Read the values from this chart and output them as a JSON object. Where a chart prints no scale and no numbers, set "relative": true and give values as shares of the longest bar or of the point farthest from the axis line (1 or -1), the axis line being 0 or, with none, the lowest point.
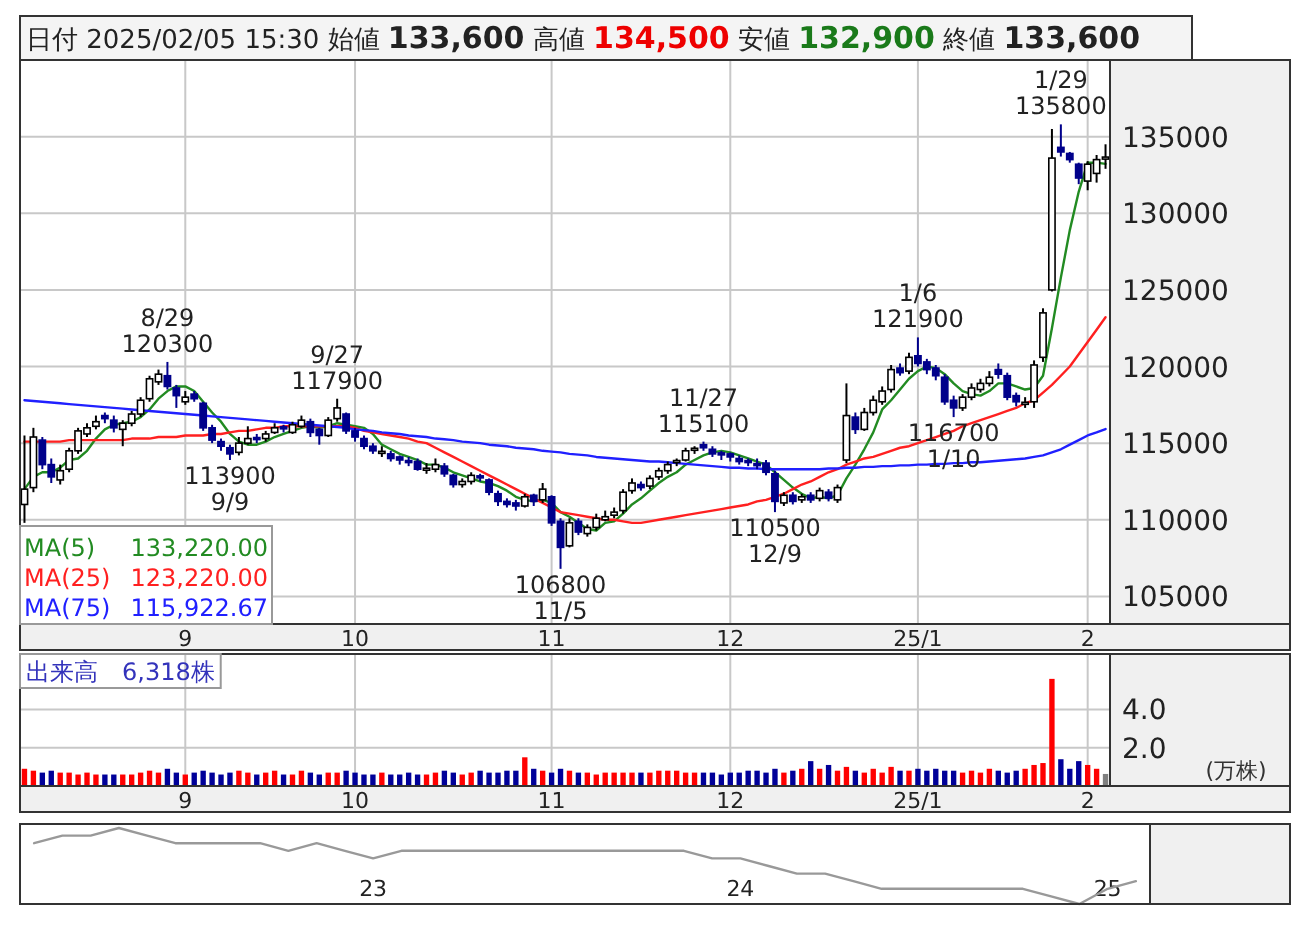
{
  "chart_data": [
    {
      "type": "candlestick",
      "title": "日付 2025/02/05 15:30 始値 **133,600** 高値 **134,500** 安値 **132,900** 終値 **133,600**",
      "categories": [
        null,
        null,
        null,
        null,
        null,
        null,
        null,
        null,
        null,
        null,
        null,
        null,
        null,
        null,
        null,
        null,
        null,
        null,
        "9",
        null,
        null,
        null,
        null,
        null,
        null,
        null,
        null,
        null,
        null,
        null,
        null,
        null,
        null,
        null,
        null,
        null,
        null,
        "10",
        null,
        null,
        null,
        null,
        null,
        null,
        null,
        null,
        null,
        null,
        null,
        null,
        null,
        null,
        null,
        null,
        null,
        null,
        null,
        null,
        null,
        "11",
        null,
        null,
        null,
        null,
        null,
        null,
        null,
        null,
        null,
        null,
        null,
        null,
        null,
        null,
        null,
        null,
        null,
        null,
        null,
        "12",
        null,
        null,
        null,
        null,
        null,
        null,
        null,
        null,
        null,
        null,
        null,
        null,
        null,
        null,
        null,
        null,
        null,
        null,
        null,
        null,
        "25/1",
        null,
        null,
        null,
        null,
        null,
        null,
        null,
        null,
        null,
        null,
        null,
        null,
        null,
        null,
        null,
        null,
        null,
        null,
        "2",
        null,
        null
      ],
      "ohlc": [
        [
          111000,
          115500,
          109800,
          112000
        ],
        [
          112100,
          116000,
          111800,
          115400
        ],
        [
          115200,
          115400,
          113300,
          113600
        ],
        [
          113600,
          114000,
          112400,
          112800
        ],
        [
          112600,
          113600,
          112300,
          113200
        ],
        [
          113300,
          114700,
          113100,
          114500
        ],
        [
          114500,
          116000,
          114300,
          115800
        ],
        [
          115600,
          116300,
          115400,
          116000
        ],
        [
          116100,
          116800,
          115900,
          116400
        ],
        [
          116800,
          117000,
          116300,
          116600
        ],
        [
          116500,
          116800,
          115700,
          116000
        ],
        [
          115900,
          116500,
          114800,
          116300
        ],
        [
          116300,
          117100,
          116100,
          116900
        ],
        [
          116900,
          118000,
          116700,
          117800
        ],
        [
          117900,
          119400,
          117700,
          119200
        ],
        [
          119000,
          119800,
          118800,
          119500
        ],
        [
          119400,
          120300,
          118500,
          118700
        ],
        [
          118600,
          118800,
          117300,
          118100
        ],
        [
          117700,
          118400,
          117500,
          118000
        ],
        [
          118200,
          118400,
          117700,
          117900
        ],
        [
          117600,
          117700,
          115800,
          116000
        ],
        [
          116000,
          116200,
          115000,
          115200
        ],
        [
          115100,
          115300,
          114500,
          114800
        ],
        [
          114700,
          114900,
          113900,
          114300
        ],
        [
          114400,
          115400,
          114200,
          115000
        ],
        [
          115000,
          116100,
          114900,
          115300
        ],
        [
          115300,
          115600,
          115000,
          115200
        ],
        [
          115300,
          115800,
          115100,
          115600
        ],
        [
          115700,
          116300,
          115600,
          116000
        ],
        [
          116000,
          116200,
          115700,
          115900
        ],
        [
          115700,
          116400,
          115600,
          116200
        ],
        [
          116100,
          116800,
          116000,
          116500
        ],
        [
          116400,
          116600,
          115400,
          115700
        ],
        [
          115900,
          116000,
          114900,
          115500
        ],
        [
          115500,
          116700,
          115400,
          116500
        ],
        [
          116600,
          117900,
          116400,
          117300
        ],
        [
          116900,
          117000,
          115600,
          115800
        ],
        [
          115800,
          116000,
          115100,
          115400
        ],
        [
          115300,
          115500,
          114600,
          114800
        ],
        [
          114800,
          115000,
          114300,
          114500
        ],
        [
          114300,
          114800,
          114100,
          114400
        ],
        [
          114300,
          114500,
          113800,
          114000
        ],
        [
          114100,
          114200,
          113600,
          113900
        ],
        [
          113800,
          114100,
          113500,
          113700
        ],
        [
          113800,
          114000,
          113200,
          113300
        ],
        [
          113200,
          113700,
          113000,
          113300
        ],
        [
          113300,
          114000,
          113100,
          113600
        ],
        [
          113500,
          113700,
          112800,
          113000
        ],
        [
          112900,
          113000,
          112100,
          112300
        ],
        [
          112300,
          112700,
          112100,
          112500
        ],
        [
          112500,
          113100,
          112300,
          112900
        ],
        [
          112800,
          113000,
          112500,
          112700
        ],
        [
          112600,
          112700,
          111600,
          111800
        ],
        [
          111700,
          111900,
          110900,
          111200
        ],
        [
          111200,
          111400,
          110800,
          111000
        ],
        [
          111100,
          111300,
          110600,
          110900
        ],
        [
          110900,
          111700,
          110800,
          111500
        ],
        [
          111600,
          111700,
          110900,
          111200
        ],
        [
          111300,
          112400,
          111100,
          112000
        ],
        [
          111500,
          111600,
          109600,
          109800
        ],
        [
          109900,
          110100,
          106800,
          108200
        ],
        [
          108300,
          110100,
          108200,
          109800
        ],
        [
          109900,
          110100,
          109000,
          109200
        ],
        [
          109100,
          109700,
          108900,
          109500
        ],
        [
          109500,
          110400,
          109300,
          110100
        ],
        [
          110000,
          110600,
          109900,
          110200
        ],
        [
          110300,
          110800,
          110100,
          110500
        ],
        [
          110600,
          112000,
          110400,
          111800
        ],
        [
          111900,
          112700,
          111700,
          112400
        ],
        [
          112300,
          112500,
          111900,
          112100
        ],
        [
          112200,
          112900,
          112000,
          112700
        ],
        [
          112800,
          113400,
          112600,
          113200
        ],
        [
          113200,
          113800,
          113000,
          113600
        ],
        [
          113700,
          114000,
          113500,
          113800
        ],
        [
          113900,
          114700,
          113800,
          114500
        ],
        [
          114500,
          114800,
          114300,
          114600
        ],
        [
          114900,
          115100,
          114500,
          114700
        ],
        [
          114600,
          114800,
          114100,
          114300
        ],
        [
          114300,
          114500,
          113900,
          114200
        ],
        [
          114300,
          114400,
          113800,
          114100
        ],
        [
          114000,
          114200,
          113600,
          113800
        ],
        [
          113800,
          114000,
          113500,
          113700
        ],
        [
          113600,
          114000,
          113300,
          113500
        ],
        [
          113700,
          113900,
          112900,
          113100
        ],
        [
          113000,
          113200,
          110500,
          111200
        ],
        [
          111100,
          111800,
          110900,
          111600
        ],
        [
          111600,
          111800,
          111000,
          111200
        ],
        [
          111300,
          111700,
          111100,
          111500
        ],
        [
          111600,
          111800,
          111100,
          111300
        ],
        [
          111400,
          112100,
          111200,
          111900
        ],
        [
          111800,
          112000,
          111200,
          111400
        ],
        [
          111300,
          112300,
          111100,
          112100
        ],
        [
          113900,
          118900,
          113700,
          116800
        ],
        [
          116700,
          117000,
          115600,
          115900
        ],
        [
          115900,
          117300,
          115800,
          117000
        ],
        [
          117000,
          118100,
          116800,
          117800
        ],
        [
          117700,
          118700,
          117500,
          118400
        ],
        [
          118500,
          120100,
          118300,
          119800
        ],
        [
          119900,
          120200,
          119400,
          119600
        ],
        [
          119700,
          120900,
          119500,
          120600
        ],
        [
          120700,
          121900,
          120000,
          120200
        ],
        [
          120300,
          120500,
          119500,
          119800
        ],
        [
          119900,
          120100,
          119100,
          119400
        ],
        [
          119300,
          119500,
          117500,
          117700
        ],
        [
          117800,
          118100,
          116700,
          117300
        ],
        [
          117300,
          118200,
          117100,
          118000
        ],
        [
          118000,
          118900,
          117800,
          118600
        ],
        [
          118500,
          119200,
          118300,
          118900
        ],
        [
          118900,
          119700,
          118700,
          119300
        ],
        [
          119800,
          120200,
          119200,
          119500
        ],
        [
          119400,
          119600,
          117800,
          118000
        ],
        [
          118100,
          118300,
          117400,
          117700
        ],
        [
          117500,
          118000,
          117300,
          117600
        ],
        [
          117700,
          120400,
          117300,
          120100
        ],
        [
          120600,
          123800,
          120300,
          123500
        ],
        [
          125000,
          135500,
          124900,
          133600
        ],
        [
          134300,
          135800,
          133700,
          134000
        ],
        [
          133900,
          134000,
          133300,
          133500
        ],
        [
          133200,
          133300,
          131900,
          132300
        ],
        [
          132100,
          133400,
          131500,
          133200
        ],
        [
          132600,
          133800,
          132000,
          133500
        ],
        [
          133600,
          134500,
          132900,
          133600
        ]
      ],
      "colors": [
        "#ffffff",
        "#ffffff",
        "#00008b",
        "#00008b",
        "#ffffff",
        "#ffffff",
        "#ffffff",
        "#ffffff",
        "#ffffff",
        "#00008b",
        "#00008b",
        "#ffffff",
        "#ffffff",
        "#ffffff",
        "#ffffff",
        "#ffffff",
        "#00008b",
        "#00008b",
        "#ffffff",
        "#00008b",
        "#00008b",
        "#00008b",
        "#00008b",
        "#00008b",
        "#ffffff",
        "#ffffff",
        "#00008b",
        "#ffffff",
        "#ffffff",
        "#00008b",
        "#ffffff",
        "#ffffff",
        "#00008b",
        "#00008b",
        "#ffffff",
        "#ffffff",
        "#00008b",
        "#00008b",
        "#00008b",
        "#00008b",
        "#ffffff",
        "#00008b",
        "#00008b",
        "#00008b",
        "#00008b",
        "#ffffff",
        "#ffffff",
        "#00008b",
        "#00008b",
        "#ffffff",
        "#ffffff",
        "#00008b",
        "#00008b",
        "#00008b",
        "#00008b",
        "#00008b",
        "#ffffff",
        "#00008b",
        "#ffffff",
        "#00008b",
        "#00008b",
        "#ffffff",
        "#00008b",
        "#ffffff",
        "#ffffff",
        "#ffffff",
        "#ffffff",
        "#ffffff",
        "#ffffff",
        "#00008b",
        "#ffffff",
        "#ffffff",
        "#ffffff",
        "#ffffff",
        "#ffffff",
        "#ffffff",
        "#00008b",
        "#00008b",
        "#00008b",
        "#00008b",
        "#00008b",
        "#00008b",
        "#00008b",
        "#00008b",
        "#00008b",
        "#ffffff",
        "#00008b",
        "#ffffff",
        "#00008b",
        "#ffffff",
        "#00008b",
        "#ffffff",
        "#ffffff",
        "#00008b",
        "#ffffff",
        "#ffffff",
        "#ffffff",
        "#ffffff",
        "#00008b",
        "#ffffff",
        "#00008b",
        "#00008b",
        "#00008b",
        "#00008b",
        "#00008b",
        "#ffffff",
        "#ffffff",
        "#ffffff",
        "#ffffff",
        "#00008b",
        "#00008b",
        "#00008b",
        "#ffffff",
        "#ffffff",
        "#ffffff",
        "#ffffff",
        "#00008b",
        "#00008b",
        "#00008b",
        "#ffffff",
        "#ffffff",
        "#ffffff"
      ],
      "series": [
        {
          "type": "line",
          "name": "MA(5) 133,220.00",
          "color": "#228b22",
          "values": [
            112000,
            112800,
            113100,
            113100,
            113400,
            113900,
            114000,
            114500,
            115300,
            115900,
            116200,
            116300,
            116400,
            116700,
            117200,
            117900,
            118400,
            118700,
            118700,
            118400,
            117700,
            117000,
            116400,
            115600,
            115100,
            114900,
            114900,
            115100,
            115400,
            115600,
            115800,
            116000,
            116100,
            116000,
            116100,
            116300,
            116200,
            116100,
            116000,
            115600,
            114900,
            114600,
            114300,
            114100,
            113900,
            113600,
            113600,
            113400,
            113100,
            112900,
            112700,
            112500,
            112400,
            112200,
            111900,
            111500,
            111300,
            111200,
            111300,
            111100,
            110500,
            110200,
            109800,
            109400,
            109300,
            109800,
            109900,
            110400,
            111000,
            111400,
            111900,
            112400,
            112800,
            113100,
            113600,
            113900,
            114200,
            114400,
            114500,
            114400,
            114200,
            114000,
            113800,
            113600,
            113100,
            112600,
            112100,
            111700,
            111400,
            111500,
            111400,
            111600,
            112700,
            113600,
            114600,
            115700,
            117200,
            117800,
            118500,
            119200,
            119700,
            120000,
            119900,
            119500,
            118900,
            118400,
            118200,
            118100,
            118400,
            118900,
            118900,
            118700,
            118500,
            118600,
            119400,
            122500,
            125800,
            128900,
            131400,
            133300,
            133300,
            133220
          ]
        },
        {
          "type": "line",
          "name": "MA(25) 123,220.00",
          "color": "#ff2020",
          "values": [
            115100,
            115100,
            115100,
            115100,
            115100,
            115200,
            115200,
            115200,
            115200,
            115200,
            115200,
            115200,
            115300,
            115300,
            115300,
            115400,
            115400,
            115400,
            115500,
            115500,
            115500,
            115600,
            115600,
            115700,
            115800,
            115800,
            115900,
            116000,
            116000,
            116100,
            116100,
            116100,
            116100,
            116100,
            116100,
            116100,
            116100,
            116000,
            115800,
            115700,
            115600,
            115500,
            115400,
            115300,
            115100,
            115000,
            114700,
            114400,
            114100,
            113800,
            113500,
            113200,
            112900,
            112600,
            112300,
            112000,
            111700,
            111400,
            111100,
            110800,
            110500,
            110400,
            110300,
            110200,
            110100,
            110000,
            110000,
            109900,
            109800,
            109800,
            109900,
            110000,
            110100,
            110200,
            110300,
            110400,
            110500,
            110600,
            110700,
            110800,
            110900,
            111000,
            111200,
            111300,
            111500,
            111700,
            112000,
            112300,
            112500,
            112800,
            113100,
            113300,
            113600,
            113800,
            114000,
            114100,
            114300,
            114500,
            114700,
            114800,
            115000,
            115200,
            115400,
            115600,
            115800,
            116100,
            116300,
            116500,
            116700,
            116900,
            117100,
            117300,
            117600,
            117800,
            118300,
            118800,
            119400,
            120000,
            120800,
            121600,
            122400,
            123220
          ]
        },
        {
          "type": "line",
          "name": "MA(75) 115,922.67",
          "color": "#2020ff",
          "values": [
            117800,
            117750,
            117700,
            117650,
            117600,
            117550,
            117500,
            117450,
            117400,
            117350,
            117300,
            117250,
            117200,
            117150,
            117100,
            117050,
            117000,
            116950,
            116900,
            116850,
            116800,
            116750,
            116700,
            116650,
            116600,
            116550,
            116500,
            116450,
            116400,
            116350,
            116300,
            116250,
            116200,
            116150,
            116100,
            116050,
            116000,
            115900,
            115850,
            115800,
            115700,
            115650,
            115600,
            115500,
            115450,
            115400,
            115300,
            115250,
            115200,
            115100,
            115050,
            115000,
            114900,
            114850,
            114800,
            114700,
            114650,
            114600,
            114500,
            114450,
            114400,
            114300,
            114250,
            114200,
            114100,
            114050,
            114000,
            113950,
            113900,
            113850,
            113800,
            113800,
            113750,
            113700,
            113650,
            113600,
            113550,
            113500,
            113450,
            113400,
            113400,
            113350,
            113350,
            113300,
            113300,
            113300,
            113300,
            113300,
            113300,
            113300,
            113350,
            113350,
            113400,
            113400,
            113450,
            113450,
            113500,
            113500,
            113550,
            113550,
            113600,
            113600,
            113650,
            113650,
            113700,
            113700,
            113750,
            113750,
            113800,
            113850,
            113900,
            113950,
            114000,
            114100,
            114200,
            114400,
            114600,
            114900,
            115200,
            115500,
            115700,
            115922.67
          ]
        }
      ],
      "ylim": [
        103200,
        140000
      ],
      "yticks": [
        105000,
        110000,
        115000,
        120000,
        125000,
        130000,
        135000
      ],
      "grid": true,
      "legend": "bottom left",
      "annotations": [
        {
          "text": "8/29\n120300",
          "y": 120300
        },
        {
          "text": "113900\n9/9",
          "y": 113900
        },
        {
          "text": "9/27\n117900",
          "y": 117900
        },
        {
          "text": "106800\n11/5",
          "y": 106800
        },
        {
          "text": "11/27\n115100",
          "y": 115100
        },
        {
          "text": "110500\n12/9",
          "y": 110500
        },
        {
          "text": "1/6\n121900",
          "y": 121900
        },
        {
          "text": "116700\n1/10",
          "y": 116700
        },
        {
          "text": "1/29\n135800",
          "y": 135800
        }
      ]
    },
    {
      "type": "bar",
      "title": "出来高　6,318株",
      "categories": [
        null,
        null,
        null,
        null,
        null,
        null,
        null,
        null,
        null,
        null,
        null,
        null,
        null,
        null,
        null,
        null,
        null,
        null,
        "9",
        null,
        null,
        null,
        null,
        null,
        null,
        null,
        null,
        null,
        null,
        null,
        null,
        null,
        null,
        null,
        null,
        null,
        null,
        "10",
        null,
        null,
        null,
        null,
        null,
        null,
        null,
        null,
        null,
        null,
        null,
        null,
        null,
        null,
        null,
        null,
        null,
        null,
        null,
        null,
        null,
        "11",
        null,
        null,
        null,
        null,
        null,
        null,
        null,
        null,
        null,
        null,
        null,
        null,
        null,
        null,
        null,
        null,
        null,
        null,
        null,
        "12",
        null,
        null,
        null,
        null,
        null,
        null,
        null,
        null,
        null,
        null,
        null,
        null,
        null,
        null,
        null,
        null,
        null,
        null,
        null,
        null,
        "25/1",
        null,
        null,
        null,
        null,
        null,
        null,
        null,
        null,
        null,
        null,
        null,
        null,
        null,
        null,
        null,
        null,
        null,
        null,
        "2",
        null,
        null
      ],
      "values": [
        0.9,
        0.8,
        0.7,
        0.8,
        0.7,
        0.7,
        0.6,
        0.7,
        0.6,
        0.6,
        0.6,
        0.6,
        0.6,
        0.7,
        0.8,
        0.7,
        0.9,
        0.7,
        0.6,
        0.7,
        0.8,
        0.7,
        0.6,
        0.7,
        0.8,
        0.7,
        0.6,
        0.7,
        0.8,
        0.6,
        0.6,
        0.8,
        0.7,
        0.6,
        0.7,
        0.7,
        0.8,
        0.7,
        0.6,
        0.6,
        0.7,
        0.6,
        0.6,
        0.7,
        0.6,
        0.6,
        0.7,
        0.8,
        0.7,
        0.6,
        0.7,
        0.8,
        0.7,
        0.7,
        0.8,
        0.8,
        1.5,
        0.9,
        0.8,
        0.7,
        0.9,
        0.8,
        0.7,
        0.7,
        0.6,
        0.7,
        0.7,
        0.7,
        0.7,
        0.7,
        0.7,
        0.8,
        0.8,
        0.8,
        0.7,
        0.7,
        0.7,
        0.7,
        0.6,
        0.7,
        0.7,
        0.8,
        0.8,
        0.7,
        0.9,
        0.7,
        0.8,
        0.9,
        1.3,
        0.9,
        1.1,
        0.8,
        1.0,
        0.8,
        0.7,
        0.9,
        0.7,
        1.0,
        0.8,
        0.8,
        0.9,
        0.8,
        0.9,
        0.8,
        0.8,
        0.7,
        0.8,
        0.7,
        0.9,
        0.8,
        0.7,
        0.8,
        0.9,
        1.1,
        1.2,
        5.6,
        1.4,
        0.9,
        1.3,
        1.1,
        0.9,
        0.63
      ],
      "colors": [
        "#ff0000",
        "#ff0000",
        "#000099",
        "#000099",
        "#ff0000",
        "#ff0000",
        "#ff0000",
        "#ff0000",
        "#ff0000",
        "#000099",
        "#000099",
        "#ff0000",
        "#ff0000",
        "#ff0000",
        "#ff0000",
        "#ff0000",
        "#000099",
        "#000099",
        "#ff0000",
        "#000099",
        "#000099",
        "#000099",
        "#000099",
        "#000099",
        "#ff0000",
        "#ff0000",
        "#000099",
        "#ff0000",
        "#ff0000",
        "#000099",
        "#ff0000",
        "#ff0000",
        "#000099",
        "#000099",
        "#ff0000",
        "#ff0000",
        "#000099",
        "#000099",
        "#000099",
        "#000099",
        "#ff0000",
        "#000099",
        "#000099",
        "#000099",
        "#000099",
        "#ff0000",
        "#ff0000",
        "#000099",
        "#000099",
        "#ff0000",
        "#ff0000",
        "#000099",
        "#000099",
        "#000099",
        "#000099",
        "#000099",
        "#ff0000",
        "#000099",
        "#ff0000",
        "#000099",
        "#000099",
        "#ff0000",
        "#000099",
        "#ff0000",
        "#ff0000",
        "#ff0000",
        "#ff0000",
        "#ff0000",
        "#ff0000",
        "#000099",
        "#ff0000",
        "#ff0000",
        "#ff0000",
        "#ff0000",
        "#ff0000",
        "#ff0000",
        "#000099",
        "#000099",
        "#000099",
        "#000099",
        "#000099",
        "#000099",
        "#000099",
        "#000099",
        "#000099",
        "#ff0000",
        "#000099",
        "#ff0000",
        "#000099",
        "#ff0000",
        "#000099",
        "#ff0000",
        "#ff0000",
        "#000099",
        "#ff0000",
        "#ff0000",
        "#ff0000",
        "#ff0000",
        "#000099",
        "#ff0000",
        "#000099",
        "#000099",
        "#000099",
        "#000099",
        "#000099",
        "#ff0000",
        "#ff0000",
        "#ff0000",
        "#ff0000",
        "#000099",
        "#000099",
        "#000099",
        "#ff0000",
        "#ff0000",
        "#ff0000",
        "#ff0000",
        "#000099",
        "#000099",
        "#000099",
        "#ff0000",
        "#ff0000",
        "#808080"
      ],
      "ylim": [
        0,
        6.9
      ],
      "yticks": [
        {
          "value": 2,
          "label": "2.0"
        },
        {
          "value": 4,
          "label": "4.0"
        }
      ],
      "ylabel": "(万株)",
      "grid": true
    },
    {
      "type": "line",
      "relative": true,
      "color": "#999999",
      "tick_labels": "x",
      "categories": [
        null,
        null,
        null,
        null,
        null,
        null,
        null,
        null,
        null,
        null,
        null,
        null,
        "23",
        null,
        null,
        null,
        null,
        null,
        null,
        null,
        null,
        null,
        null,
        null,
        null,
        "24",
        null,
        null,
        null,
        null,
        null,
        null,
        null,
        null,
        null,
        null,
        null,
        null,
        "25",
        null
      ],
      "values": [
        0.8,
        0.9,
        0.9,
        1,
        0.9,
        0.8,
        0.8,
        0.8,
        0.8,
        0.7,
        0.8,
        0.7,
        0.6,
        0.7,
        0.7,
        0.7,
        0.7,
        0.7,
        0.7,
        0.7,
        0.7,
        0.7,
        0.7,
        0.7,
        0.6,
        0.6,
        0.5,
        0.4,
        0.4,
        0.3,
        0.2,
        0.2,
        0.2,
        0.2,
        0.2,
        0.2,
        0.1,
        0,
        0.2,
        0.3
      ]
    }
  ]
}
